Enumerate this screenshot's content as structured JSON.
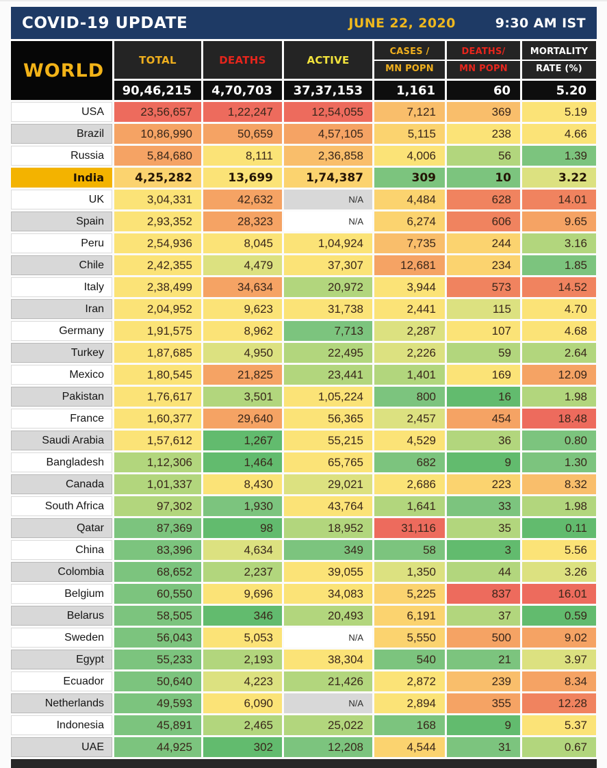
{
  "title_bar": {
    "title": "COVID-19 UPDATE",
    "date": "JUNE 22, 2020",
    "time": "9:30 AM IST"
  },
  "accent_colors": {
    "navy": "#1E3A65",
    "gold": "#EFB81E",
    "header_red": "#E6251C",
    "header_yellow": "#F2E33C",
    "india_gold": "#F3B300"
  },
  "palette": {
    "r": "#ED6B5D",
    "ro": "#F0835F",
    "o": "#F5A364",
    "lo": "#F9BE6B",
    "am": "#FBD36F",
    "y": "#FBE377",
    "yg": "#DCE180",
    "lg": "#B2D67D",
    "g": "#7CC47E",
    "dg": "#62BB6E",
    "na_gray": "#D8D8D8",
    "na_white": "#FFFFFF"
  },
  "chart_data": {
    "type": "table",
    "title": "COVID-19 UPDATE",
    "world_label": "WORLD",
    "columns": [
      {
        "label": "TOTAL",
        "color": "c-gold"
      },
      {
        "label": "DEATHS",
        "color": "c-red"
      },
      {
        "label": "ACTIVE",
        "color": "c-yellow"
      },
      {
        "label": "CASES /",
        "label2": "MN POPN",
        "color": "c-gold"
      },
      {
        "label": "DEATHS/",
        "label2": "MN POPN",
        "color": "c-red"
      },
      {
        "label": "MORTALITY",
        "label2": "RATE (%)",
        "color": "c-white"
      }
    ],
    "world_row": [
      "90,46,215",
      "4,70,703",
      "37,37,153",
      "1,161",
      "60",
      "5.20"
    ],
    "rows": [
      {
        "country": "USA",
        "name_bg": "white",
        "values": [
          "23,56,657",
          "1,22,247",
          "12,54,055",
          "7,121",
          "369",
          "5.19"
        ],
        "colors": [
          "r",
          "r",
          "r",
          "lo",
          "lo",
          "y"
        ]
      },
      {
        "country": "Brazil",
        "name_bg": "gray",
        "values": [
          "10,86,990",
          "50,659",
          "4,57,105",
          "5,115",
          "238",
          "4.66"
        ],
        "colors": [
          "o",
          "o",
          "o",
          "am",
          "y",
          "y"
        ]
      },
      {
        "country": "Russia",
        "name_bg": "white",
        "values": [
          "5,84,680",
          "8,111",
          "2,36,858",
          "4,006",
          "56",
          "1.39"
        ],
        "colors": [
          "o",
          "y",
          "lo",
          "y",
          "lg",
          "g"
        ]
      },
      {
        "country": "India",
        "name_bg": "gold",
        "values": [
          "4,25,282",
          "13,699",
          "1,74,387",
          "309",
          "10",
          "3.22"
        ],
        "colors": [
          "am",
          "y",
          "am",
          "g",
          "g",
          "yg"
        ],
        "bold": true
      },
      {
        "country": "UK",
        "name_bg": "white",
        "values": [
          "3,04,331",
          "42,632",
          "N/A",
          "4,484",
          "628",
          "14.01"
        ],
        "colors": [
          "y",
          "o",
          "na_gray",
          "am",
          "ro",
          "ro"
        ]
      },
      {
        "country": "Spain",
        "name_bg": "gray",
        "values": [
          "2,93,352",
          "28,323",
          "N/A",
          "6,274",
          "606",
          "9.65"
        ],
        "colors": [
          "y",
          "o",
          "na_white",
          "am",
          "ro",
          "o"
        ]
      },
      {
        "country": "Peru",
        "name_bg": "white",
        "values": [
          "2,54,936",
          "8,045",
          "1,04,924",
          "7,735",
          "244",
          "3.16"
        ],
        "colors": [
          "y",
          "y",
          "y",
          "lo",
          "am",
          "lg"
        ]
      },
      {
        "country": "Chile",
        "name_bg": "gray",
        "values": [
          "2,42,355",
          "4,479",
          "37,307",
          "12,681",
          "234",
          "1.85"
        ],
        "colors": [
          "y",
          "yg",
          "y",
          "o",
          "am",
          "g"
        ]
      },
      {
        "country": "Italy",
        "name_bg": "white",
        "values": [
          "2,38,499",
          "34,634",
          "20,972",
          "3,944",
          "573",
          "14.52"
        ],
        "colors": [
          "y",
          "o",
          "lg",
          "y",
          "ro",
          "ro"
        ]
      },
      {
        "country": "Iran",
        "name_bg": "gray",
        "values": [
          "2,04,952",
          "9,623",
          "31,738",
          "2,441",
          "115",
          "4.70"
        ],
        "colors": [
          "y",
          "y",
          "y",
          "y",
          "yg",
          "y"
        ]
      },
      {
        "country": "Germany",
        "name_bg": "white",
        "values": [
          "1,91,575",
          "8,962",
          "7,713",
          "2,287",
          "107",
          "4.68"
        ],
        "colors": [
          "y",
          "y",
          "g",
          "yg",
          "y",
          "y"
        ]
      },
      {
        "country": "Turkey",
        "name_bg": "gray",
        "values": [
          "1,87,685",
          "4,950",
          "22,495",
          "2,226",
          "59",
          "2.64"
        ],
        "colors": [
          "y",
          "yg",
          "lg",
          "yg",
          "lg",
          "lg"
        ]
      },
      {
        "country": "Mexico",
        "name_bg": "white",
        "values": [
          "1,80,545",
          "21,825",
          "23,441",
          "1,401",
          "169",
          "12.09"
        ],
        "colors": [
          "y",
          "o",
          "lg",
          "lg",
          "y",
          "o"
        ]
      },
      {
        "country": "Pakistan",
        "name_bg": "gray",
        "values": [
          "1,76,617",
          "3,501",
          "1,05,224",
          "800",
          "16",
          "1.98"
        ],
        "colors": [
          "y",
          "lg",
          "y",
          "g",
          "dg",
          "lg"
        ]
      },
      {
        "country": "France",
        "name_bg": "white",
        "values": [
          "1,60,377",
          "29,640",
          "56,365",
          "2,457",
          "454",
          "18.48"
        ],
        "colors": [
          "y",
          "o",
          "y",
          "yg",
          "o",
          "r"
        ]
      },
      {
        "country": "Saudi Arabia",
        "name_bg": "gray",
        "values": [
          "1,57,612",
          "1,267",
          "55,215",
          "4,529",
          "36",
          "0.80"
        ],
        "colors": [
          "y",
          "dg",
          "y",
          "y",
          "lg",
          "g"
        ]
      },
      {
        "country": "Bangladesh",
        "name_bg": "white",
        "values": [
          "1,12,306",
          "1,464",
          "65,765",
          "682",
          "9",
          "1.30"
        ],
        "colors": [
          "lg",
          "dg",
          "y",
          "g",
          "dg",
          "g"
        ]
      },
      {
        "country": "Canada",
        "name_bg": "gray",
        "values": [
          "1,01,337",
          "8,430",
          "29,021",
          "2,686",
          "223",
          "8.32"
        ],
        "colors": [
          "lg",
          "y",
          "yg",
          "y",
          "am",
          "lo"
        ]
      },
      {
        "country": "South Africa",
        "name_bg": "white",
        "values": [
          "97,302",
          "1,930",
          "43,764",
          "1,641",
          "33",
          "1.98"
        ],
        "colors": [
          "lg",
          "g",
          "y",
          "lg",
          "g",
          "lg"
        ]
      },
      {
        "country": "Qatar",
        "name_bg": "gray",
        "values": [
          "87,369",
          "98",
          "18,952",
          "31,116",
          "35",
          "0.11"
        ],
        "colors": [
          "g",
          "dg",
          "lg",
          "r",
          "lg",
          "dg"
        ]
      },
      {
        "country": "China",
        "name_bg": "white",
        "values": [
          "83,396",
          "4,634",
          "349",
          "58",
          "3",
          "5.56"
        ],
        "colors": [
          "g",
          "yg",
          "g",
          "g",
          "dg",
          "y"
        ]
      },
      {
        "country": "Colombia",
        "name_bg": "gray",
        "values": [
          "68,652",
          "2,237",
          "39,055",
          "1,350",
          "44",
          "3.26"
        ],
        "colors": [
          "g",
          "lg",
          "y",
          "yg",
          "lg",
          "yg"
        ]
      },
      {
        "country": "Belgium",
        "name_bg": "white",
        "values": [
          "60,550",
          "9,696",
          "34,083",
          "5,225",
          "837",
          "16.01"
        ],
        "colors": [
          "g",
          "y",
          "y",
          "am",
          "r",
          "r"
        ]
      },
      {
        "country": "Belarus",
        "name_bg": "gray",
        "values": [
          "58,505",
          "346",
          "20,493",
          "6,191",
          "37",
          "0.59"
        ],
        "colors": [
          "g",
          "dg",
          "lg",
          "am",
          "lg",
          "dg"
        ]
      },
      {
        "country": "Sweden",
        "name_bg": "white",
        "values": [
          "56,043",
          "5,053",
          "N/A",
          "5,550",
          "500",
          "9.02"
        ],
        "colors": [
          "g",
          "y",
          "na_white",
          "am",
          "o",
          "o"
        ]
      },
      {
        "country": "Egypt",
        "name_bg": "gray",
        "values": [
          "55,233",
          "2,193",
          "38,304",
          "540",
          "21",
          "3.97"
        ],
        "colors": [
          "g",
          "lg",
          "y",
          "g",
          "g",
          "yg"
        ]
      },
      {
        "country": "Ecuador",
        "name_bg": "white",
        "values": [
          "50,640",
          "4,223",
          "21,426",
          "2,872",
          "239",
          "8.34"
        ],
        "colors": [
          "g",
          "yg",
          "lg",
          "y",
          "lo",
          "o"
        ]
      },
      {
        "country": "Netherlands",
        "name_bg": "gray",
        "values": [
          "49,593",
          "6,090",
          "N/A",
          "2,894",
          "355",
          "12.28"
        ],
        "colors": [
          "g",
          "y",
          "na_gray",
          "y",
          "o",
          "ro"
        ]
      },
      {
        "country": "Indonesia",
        "name_bg": "white",
        "values": [
          "45,891",
          "2,465",
          "25,022",
          "168",
          "9",
          "5.37"
        ],
        "colors": [
          "g",
          "lg",
          "lg",
          "g",
          "dg",
          "y"
        ]
      },
      {
        "country": "UAE",
        "name_bg": "gray",
        "values": [
          "44,925",
          "302",
          "12,208",
          "4,544",
          "31",
          "0.67"
        ],
        "colors": [
          "g",
          "dg",
          "g",
          "am",
          "g",
          "lg"
        ]
      }
    ]
  }
}
